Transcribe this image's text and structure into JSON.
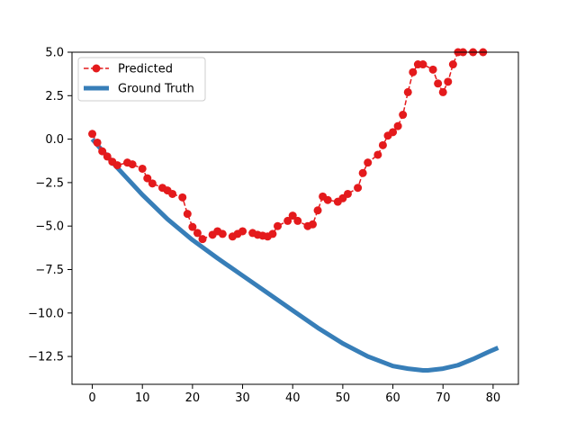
{
  "chart_data": {
    "type": "line",
    "title": "",
    "xlabel": "",
    "ylabel": "",
    "xlim": [
      -4.05,
      85.05
    ],
    "ylim": [
      -14.1,
      5.0
    ],
    "xticks": [
      0,
      10,
      20,
      30,
      40,
      50,
      60,
      70,
      80
    ],
    "xtick_labels": [
      "0",
      "10",
      "20",
      "30",
      "40",
      "50",
      "60",
      "70",
      "80"
    ],
    "yticks": [
      5.0,
      2.5,
      0.0,
      -2.5,
      -5.0,
      -7.5,
      -10.0,
      -12.5
    ],
    "ytick_labels": [
      "5.0",
      "2.5",
      "0.0",
      "−2.5",
      "−5.0",
      "−7.5",
      "−10.0",
      "−12.5"
    ],
    "grid": false,
    "legend_position": "upper-left",
    "series": [
      {
        "name": "Predicted",
        "style": "dashed-with-markers",
        "color": "#e41a1c",
        "x": [
          0,
          1,
          2,
          3,
          4,
          5,
          7,
          8,
          10,
          11,
          12,
          14,
          15,
          16,
          18,
          19,
          20,
          21,
          22,
          24,
          25,
          26,
          28,
          29,
          30,
          32,
          33,
          34,
          35,
          36,
          37,
          39,
          40,
          41,
          43,
          44,
          45,
          46,
          47,
          49,
          50,
          51,
          53,
          54,
          55,
          57,
          58,
          59,
          60,
          61,
          62,
          63,
          64,
          65,
          66,
          68,
          69,
          70,
          71,
          72,
          73,
          74,
          76,
          78
        ],
        "y": [
          0.3,
          -0.2,
          -0.7,
          -1.0,
          -1.3,
          -1.5,
          -1.35,
          -1.45,
          -1.7,
          -2.25,
          -2.55,
          -2.8,
          -2.95,
          -3.15,
          -3.35,
          -4.3,
          -5.05,
          -5.4,
          -5.75,
          -5.5,
          -5.3,
          -5.45,
          -5.6,
          -5.45,
          -5.3,
          -5.4,
          -5.5,
          -5.55,
          -5.6,
          -5.45,
          -5.0,
          -4.7,
          -4.4,
          -4.7,
          -5.0,
          -4.9,
          -4.1,
          -3.3,
          -3.5,
          -3.6,
          -3.4,
          -3.15,
          -2.8,
          -1.95,
          -1.35,
          -0.9,
          -0.35,
          0.2,
          0.4,
          0.75,
          1.4,
          2.7,
          3.85,
          4.3,
          4.3,
          4.0,
          3.2,
          2.7,
          3.3,
          4.3,
          5.0,
          5.0,
          5.0,
          5.0
        ]
      },
      {
        "name": "Ground Truth",
        "style": "solid-thick",
        "color": "#377eb8",
        "x": [
          0,
          5,
          10,
          15,
          20,
          25,
          30,
          35,
          40,
          45,
          50,
          55,
          60,
          63,
          66,
          67,
          70,
          73,
          76,
          79,
          81
        ],
        "y": [
          0.0,
          -1.65,
          -3.2,
          -4.6,
          -5.8,
          -6.85,
          -7.85,
          -8.85,
          -9.85,
          -10.85,
          -11.75,
          -12.5,
          -13.05,
          -13.2,
          -13.3,
          -13.3,
          -13.2,
          -13.0,
          -12.65,
          -12.25,
          -12.0
        ]
      }
    ]
  }
}
